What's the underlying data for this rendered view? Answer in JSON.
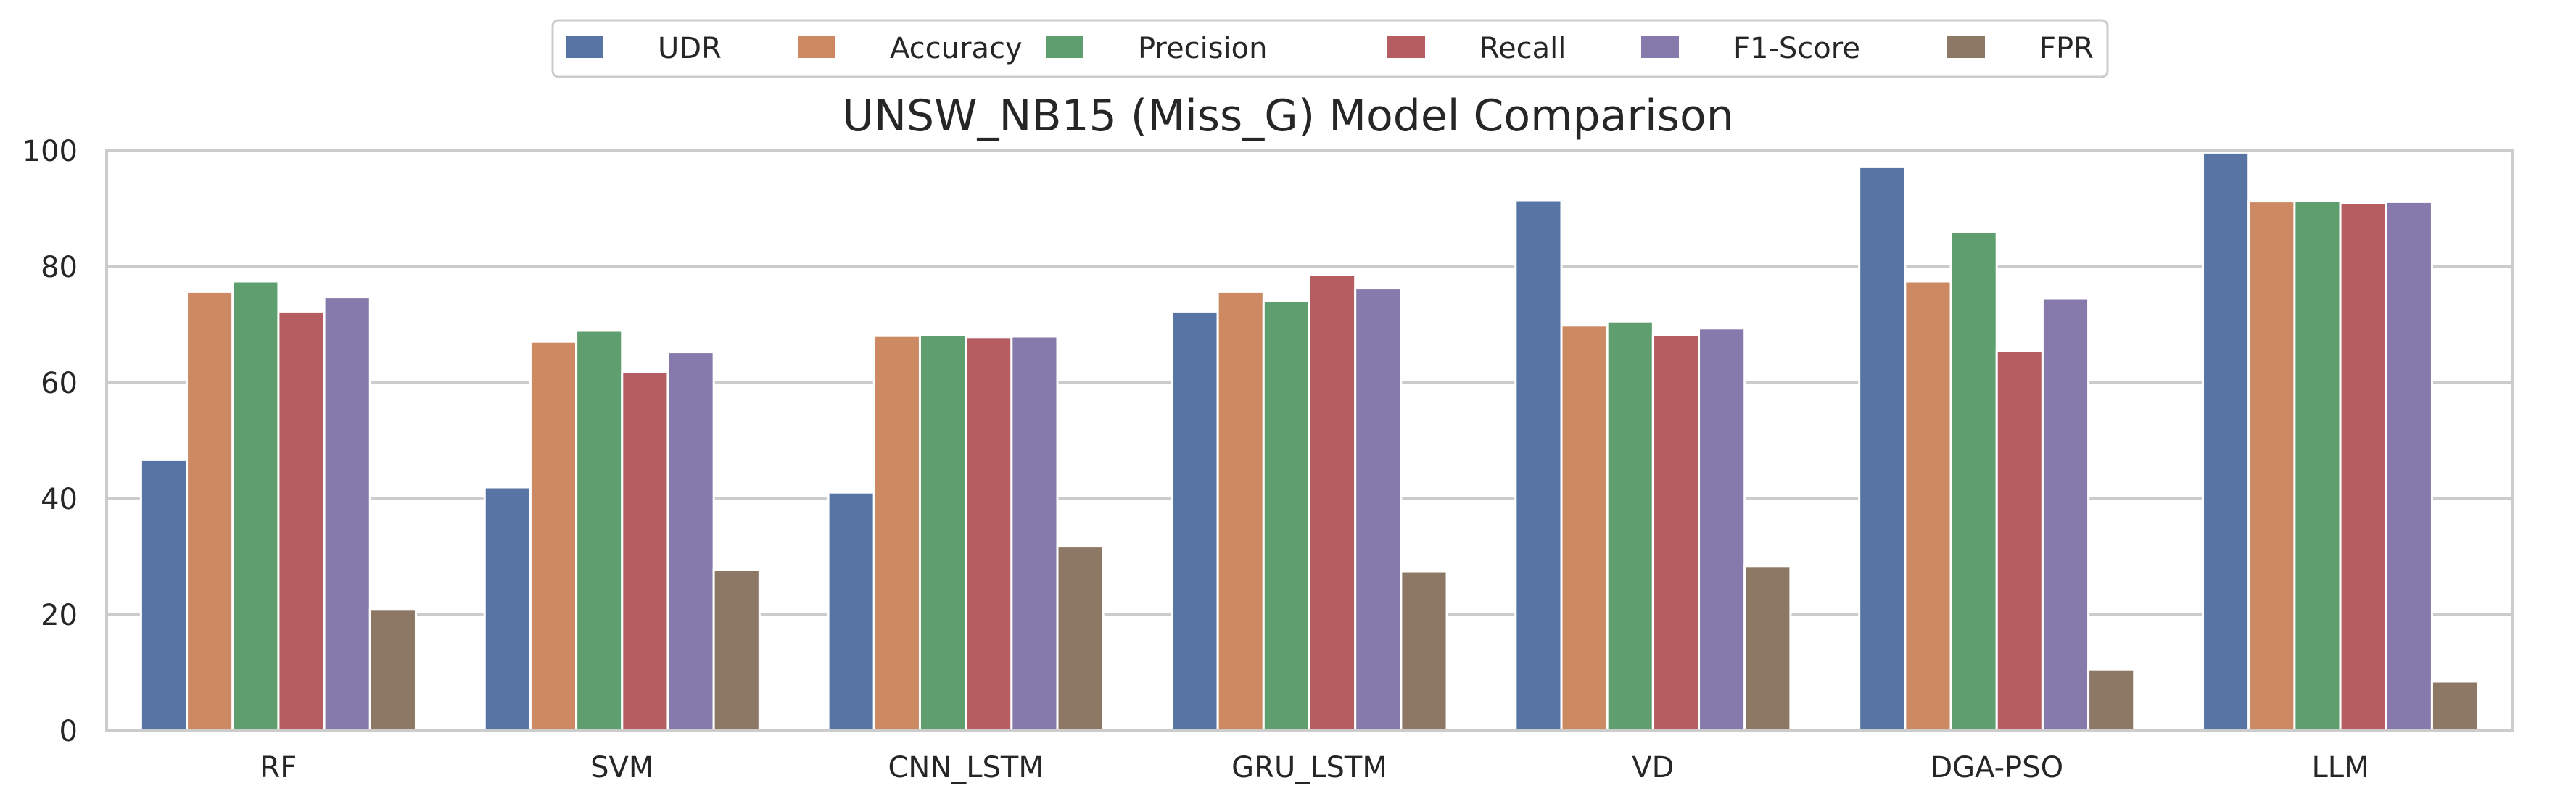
{
  "chart_data": {
    "type": "bar",
    "title": "UNSW_NB15 (Miss_G) Model Comparison",
    "xlabel": "",
    "ylabel": "",
    "ylim": [
      0,
      100
    ],
    "yticks": [
      "0",
      "20",
      "40",
      "60",
      "80",
      "100"
    ],
    "grid": "horizontal",
    "legend_position": "top-center",
    "categories": [
      "RF",
      "SVM",
      "CNN_LSTM",
      "GRU_LSTM",
      "VD",
      "DGA-PSO",
      "LLM"
    ],
    "series": [
      {
        "name": "UDR",
        "color": "#5874a5",
        "values": [
          46.7,
          42.0,
          41.1,
          72.2,
          91.5,
          97.2,
          99.7
        ]
      },
      {
        "name": "Accuracy",
        "color": "#cc8962",
        "values": [
          75.7,
          67.1,
          68.1,
          75.7,
          69.9,
          77.5,
          91.3
        ]
      },
      {
        "name": "Precision",
        "color": "#5f9e6e",
        "values": [
          77.5,
          69.0,
          68.2,
          74.1,
          70.6,
          86.0,
          91.4
        ]
      },
      {
        "name": "Recall",
        "color": "#b55d60",
        "values": [
          72.2,
          61.9,
          67.9,
          78.6,
          68.2,
          65.5,
          91.0
        ]
      },
      {
        "name": "F1-Score",
        "color": "#857aab",
        "values": [
          74.8,
          65.3,
          68.0,
          76.3,
          69.4,
          74.5,
          91.2
        ]
      },
      {
        "name": "FPR",
        "color": "#8d7866",
        "values": [
          20.9,
          27.8,
          31.8,
          27.5,
          28.4,
          10.6,
          8.5
        ]
      }
    ]
  }
}
